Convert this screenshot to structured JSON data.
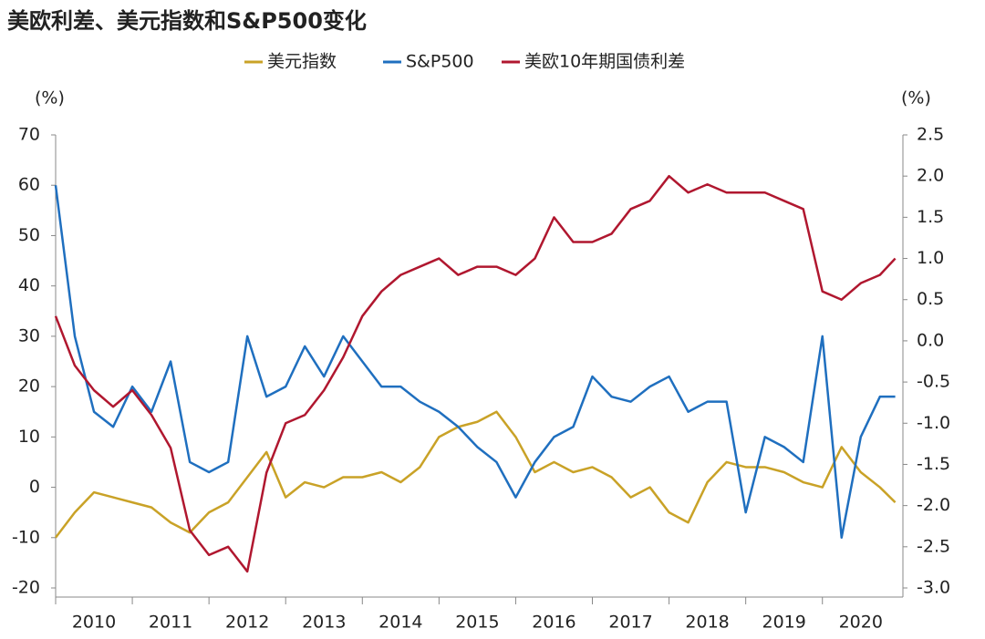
{
  "chart_data": {
    "type": "line",
    "title": "美欧利差、美元指数和S&P500变化",
    "y_label": "(%)",
    "y2_label": "(%)",
    "x": [
      2010.0,
      2010.25,
      2010.5,
      2010.75,
      2011.0,
      2011.25,
      2011.5,
      2011.75,
      2012.0,
      2012.25,
      2012.5,
      2012.75,
      2013.0,
      2013.25,
      2013.5,
      2013.75,
      2014.0,
      2014.25,
      2014.5,
      2014.75,
      2015.0,
      2015.25,
      2015.5,
      2015.75,
      2016.0,
      2016.25,
      2016.5,
      2016.75,
      2017.0,
      2017.25,
      2017.5,
      2017.75,
      2018.0,
      2018.25,
      2018.5,
      2018.75,
      2019.0,
      2019.25,
      2019.5,
      2019.75,
      2020.0,
      2020.25,
      2020.5,
      2020.75,
      2020.95
    ],
    "series": [
      {
        "name": "美元指数",
        "color": "#c9a227",
        "values": [
          -10,
          -5,
          -1,
          -2,
          -3,
          -4,
          -7,
          -9,
          -5,
          -3,
          2,
          7,
          -2,
          1,
          0,
          2,
          2,
          3,
          1,
          4,
          10,
          12,
          13,
          15,
          10,
          3,
          5,
          3,
          4,
          2,
          -2,
          0,
          -5,
          -7,
          1,
          5,
          4,
          4,
          3,
          1,
          0,
          8,
          3,
          0,
          -3
        ]
      },
      {
        "name": "S&P500",
        "color": "#1f6fbf",
        "values": [
          60,
          30,
          15,
          12,
          20,
          15,
          25,
          5,
          3,
          5,
          30,
          18,
          20,
          28,
          22,
          30,
          25,
          20,
          20,
          17,
          15,
          12,
          8,
          5,
          -2,
          5,
          10,
          12,
          22,
          18,
          17,
          20,
          22,
          15,
          17,
          17,
          -5,
          10,
          8,
          5,
          30,
          -10,
          10,
          18,
          18
        ]
      },
      {
        "name": "美欧10年期国债利差",
        "color": "#b0172f",
        "axis": "y2",
        "values": [
          0.3,
          -0.3,
          -0.6,
          -0.8,
          -0.6,
          -0.9,
          -1.3,
          -2.3,
          -2.6,
          -2.5,
          -2.8,
          -1.6,
          -1.0,
          -0.9,
          -0.6,
          -0.2,
          0.3,
          0.6,
          0.8,
          0.9,
          1.0,
          0.8,
          0.9,
          0.9,
          0.8,
          1.0,
          1.5,
          1.2,
          1.2,
          1.3,
          1.6,
          1.7,
          2.0,
          1.8,
          1.9,
          1.8,
          1.8,
          1.8,
          1.7,
          1.6,
          0.6,
          0.5,
          0.7,
          0.8,
          1.0
        ]
      }
    ],
    "xlim": [
      2010.0,
      2021.05
    ],
    "xticks": [
      2010,
      2011,
      2012,
      2013,
      2014,
      2015,
      2016,
      2017,
      2018,
      2019,
      2020
    ],
    "ylim": [
      -20,
      70
    ],
    "yticks": [
      -20,
      -10,
      0,
      10,
      20,
      30,
      40,
      50,
      60,
      70
    ],
    "y2lim": [
      -3.0,
      2.5
    ],
    "y2ticks": [
      {
        "value": -3.0,
        "label": "-3.0"
      },
      {
        "value": -2.5,
        "label": "-2.5"
      },
      {
        "value": -2.0,
        "label": "-2.0"
      },
      {
        "value": -1.5,
        "label": "-1.5"
      },
      {
        "value": -1.0,
        "label": "-1.0"
      },
      {
        "value": -0.5,
        "label": "-0.5"
      },
      {
        "value": 0.0,
        "label": "0.0"
      },
      {
        "value": 0.5,
        "label": "0.5"
      },
      {
        "value": 1.0,
        "label": "1.0"
      },
      {
        "value": 1.5,
        "label": "1.5"
      },
      {
        "value": 2.0,
        "label": "2.0"
      },
      {
        "value": 2.5,
        "label": "2.5"
      }
    ],
    "legend": "top"
  }
}
